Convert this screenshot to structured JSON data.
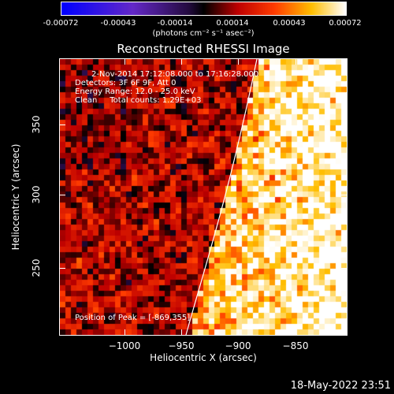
{
  "colorbar": {
    "ticks": [
      "-0.00072",
      "-0.00043",
      "-0.00014",
      "0.00014",
      "0.00043",
      "0.00072"
    ],
    "units": "(photons cm⁻² s⁻¹ asec⁻²)"
  },
  "plot": {
    "title": "Reconstructed RHESSI Image",
    "annotations": [
      "2-Nov-2014 17:12:08.000 to 17:16:28.000",
      "Detectors: 3F 6F 9F, Att 0",
      "Energy Range: 12.0 - 25.0 keV",
      "Clean     Total counts: 1.29E+03"
    ],
    "peak_label": "Position of Peak = [-869,355]",
    "x_ticks": [
      "−1000",
      "−950",
      "−900",
      "−850"
    ],
    "y_ticks": [
      "250",
      "300",
      "350"
    ],
    "xlabel": "Heliocentric X (arcsec)",
    "ylabel": "Heliocentric Y (arcsec)",
    "xlim": [
      -1027,
      -837
    ],
    "ylim": [
      200,
      380
    ]
  },
  "footer": {
    "timestamp": "18-May-2022 23:51"
  },
  "colors": {
    "background": "#000000",
    "text": "#ffffff",
    "limb": "#ffffff"
  }
}
